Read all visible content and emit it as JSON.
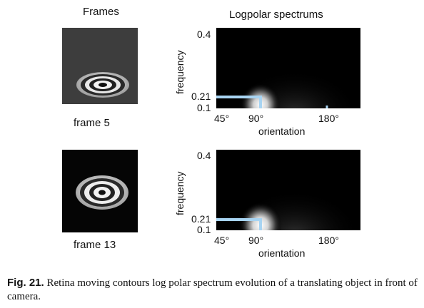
{
  "columns": {
    "frames_title": "Frames",
    "spectrum_title": "Logpolar spectrums"
  },
  "rows": [
    {
      "frame_label": "frame 5",
      "y_ticks": [
        "0.4",
        "0.21",
        "0.1"
      ],
      "x_ticks": [
        "45°",
        "90°",
        "180°"
      ],
      "ylabel": "frequency",
      "xlabel": "orientation"
    },
    {
      "frame_label": "frame 13",
      "y_ticks": [
        "0.4",
        "0.21",
        "0.1"
      ],
      "x_ticks": [
        "45°",
        "90°",
        "180°"
      ],
      "ylabel": "frequency",
      "xlabel": "orientation"
    }
  ],
  "caption": {
    "label": "Fig. 21.",
    "text": "Retina moving contours log polar spectrum evolution of a translating object in front of camera."
  },
  "colors": {
    "marker": "#a8d4f2",
    "frame5_background": "#3d3d3d",
    "frame13_background": "#050505"
  }
}
